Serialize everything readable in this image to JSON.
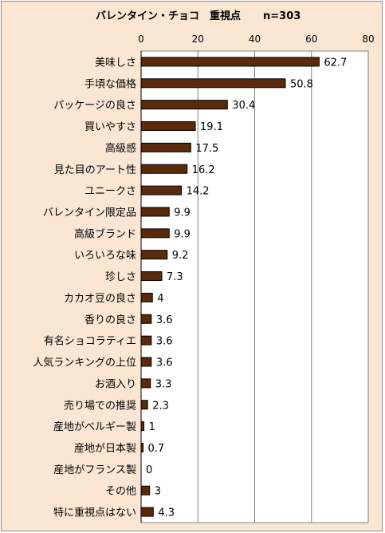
{
  "chart_data": {
    "type": "bar",
    "orientation": "horizontal",
    "title": "バレンタイン・チョコ　重視点",
    "sample_size": "n=303",
    "categories": [
      "美味しさ",
      "手頃な価格",
      "パッケージの良さ",
      "買いやすさ",
      "高級感",
      "見た目のアート性",
      "ユニークさ",
      "バレンタイン限定品",
      "高級ブランド",
      "いろいろな味",
      "珍しさ",
      "カカオ豆の良さ",
      "香りの良さ",
      "有名ショコラティエ",
      "人気ランキングの上位",
      "お酒入り",
      "売り場での推奨",
      "産地がベルギー製",
      "産地が日本製",
      "産地がフランス製",
      "その他",
      "特に重視点はない"
    ],
    "values": [
      62.7,
      50.8,
      30.4,
      19.1,
      17.5,
      16.2,
      14.2,
      9.9,
      9.9,
      9.2,
      7.3,
      4,
      3.6,
      3.6,
      3.6,
      3.3,
      2.3,
      1,
      0.7,
      0,
      3,
      4.3
    ],
    "value_labels": [
      "62.7",
      "50.8",
      "30.4",
      "19.1",
      "17.5",
      "16.2",
      "14.2",
      "9.9",
      "9.9",
      "9.2",
      "7.3",
      "4",
      "3.6",
      "3.6",
      "3.6",
      "3.3",
      "2.3",
      "1",
      "0.7",
      "0",
      "3",
      "4.3"
    ],
    "xlim": [
      0,
      80
    ],
    "xticks": [
      0,
      20,
      40,
      60,
      80
    ],
    "x_tick_position": "top",
    "grid": true,
    "colors": {
      "bar_fill": "#5a2a0c",
      "bar_edge": "#000000",
      "plot_background": "#ffffff",
      "chart_background": "#fbe6d4",
      "gridline": "#808080"
    }
  }
}
